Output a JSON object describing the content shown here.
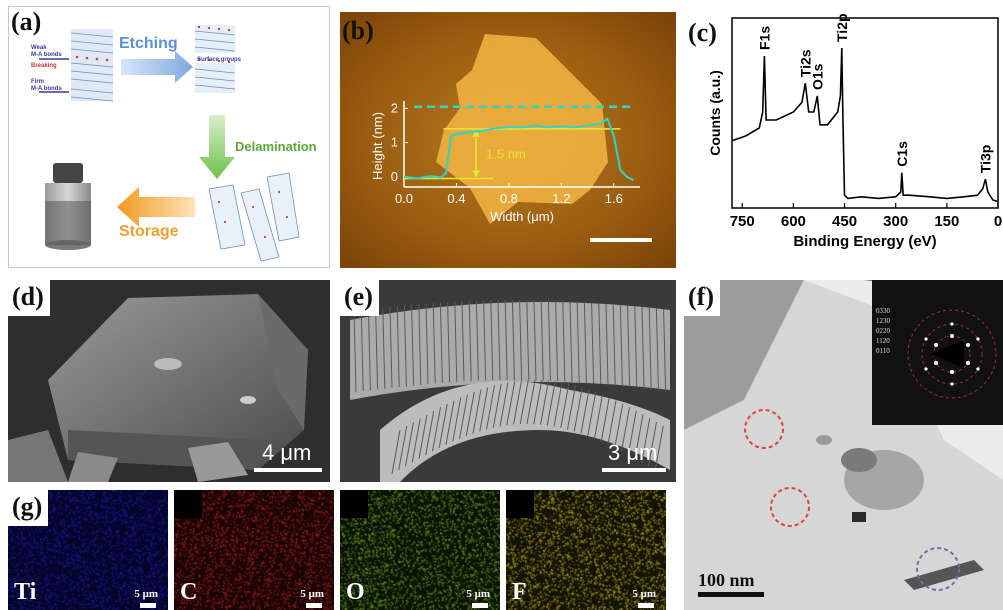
{
  "panels": {
    "a": {
      "label": "(a)",
      "weak_bonds": "Weak\nM-A bonds",
      "breaking": "Breaking",
      "firm_bonds": "Firm\nM-A bonds",
      "etching": "Etching",
      "surface_groups": "Surface groups",
      "delamination": "Delamination",
      "storage": "Storage"
    },
    "b": {
      "label": "(b)",
      "thickness": "1.5 nm"
    },
    "c": {
      "label": "(c)"
    },
    "d": {
      "label": "(d)",
      "scale": "4 μm"
    },
    "e": {
      "label": "(e)",
      "scale": "3 μm"
    },
    "f": {
      "label": "(f)",
      "scale": "100 nm",
      "saed_indices": [
        "0330",
        "1230",
        "0220",
        "1120",
        "0110"
      ]
    },
    "g": {
      "label": "(g)",
      "maps": [
        {
          "element": "Ti",
          "scale": "5 μm",
          "color": "#1a1aa0"
        },
        {
          "element": "C",
          "scale": "5 μm",
          "color": "#a02020"
        },
        {
          "element": "O",
          "scale": "5 μm",
          "color": "#6a9a20"
        },
        {
          "element": "F",
          "scale": "5 μm",
          "color": "#b0a020"
        }
      ]
    }
  },
  "chart_data": [
    {
      "type": "line",
      "panel": "b",
      "xlabel": "Width (μm)",
      "ylabel": "Height (nm)",
      "xlim": [
        0.0,
        1.8
      ],
      "ylim": [
        -0.3,
        2.1
      ],
      "xticks": [
        "0.0",
        "0.4",
        "0.8",
        "1.2",
        "1.6"
      ],
      "yticks": [
        "0",
        "1",
        "2"
      ],
      "series": [
        {
          "color": "#2ed6c8",
          "x": [
            0.0,
            0.1,
            0.2,
            0.28,
            0.32,
            0.36,
            0.4,
            0.5,
            0.6,
            0.7,
            0.8,
            0.9,
            1.0,
            1.1,
            1.2,
            1.3,
            1.4,
            1.5,
            1.55,
            1.6,
            1.65,
            1.7,
            1.75
          ],
          "y": [
            0.0,
            -0.05,
            0.02,
            -0.02,
            0.1,
            1.2,
            1.25,
            1.3,
            1.35,
            1.42,
            1.45,
            1.45,
            1.5,
            1.45,
            1.48,
            1.45,
            1.5,
            1.55,
            1.7,
            1.2,
            0.2,
            0.0,
            -0.1
          ]
        }
      ],
      "reference_lines": {
        "dashed_top": 2.05,
        "upper": 1.4,
        "lower": -0.05
      }
    },
    {
      "type": "line",
      "panel": "c",
      "xlabel": "Binding Energy (eV)",
      "ylabel": "Counts (a.u.)",
      "xlim": [
        780,
        0
      ],
      "xticks": [
        "750",
        "600",
        "450",
        "300",
        "150",
        "0"
      ],
      "peak_labels": [
        {
          "name": "F1s",
          "x": 685
        },
        {
          "name": "Ti2s",
          "x": 565
        },
        {
          "name": "O1s",
          "x": 530
        },
        {
          "name": "Ti2p",
          "x": 458
        },
        {
          "name": "C1s",
          "x": 282
        },
        {
          "name": "Ti3p",
          "x": 37
        }
      ],
      "series": [
        {
          "color": "#000000",
          "x": [
            780,
            740,
            700,
            690,
            685,
            680,
            650,
            600,
            575,
            565,
            555,
            540,
            530,
            522,
            500,
            470,
            462,
            458,
            455,
            450,
            440,
            400,
            350,
            300,
            285,
            282,
            278,
            260,
            200,
            150,
            100,
            60,
            45,
            37,
            30,
            15,
            0
          ],
          "y": [
            0.42,
            0.45,
            0.5,
            0.6,
            0.95,
            0.55,
            0.55,
            0.6,
            0.66,
            0.78,
            0.6,
            0.6,
            0.7,
            0.52,
            0.52,
            0.6,
            0.7,
            1.0,
            0.6,
            0.08,
            0.06,
            0.07,
            0.06,
            0.07,
            0.1,
            0.22,
            0.08,
            0.08,
            0.07,
            0.06,
            0.07,
            0.08,
            0.12,
            0.18,
            0.1,
            0.05,
            0.04
          ]
        }
      ]
    }
  ]
}
